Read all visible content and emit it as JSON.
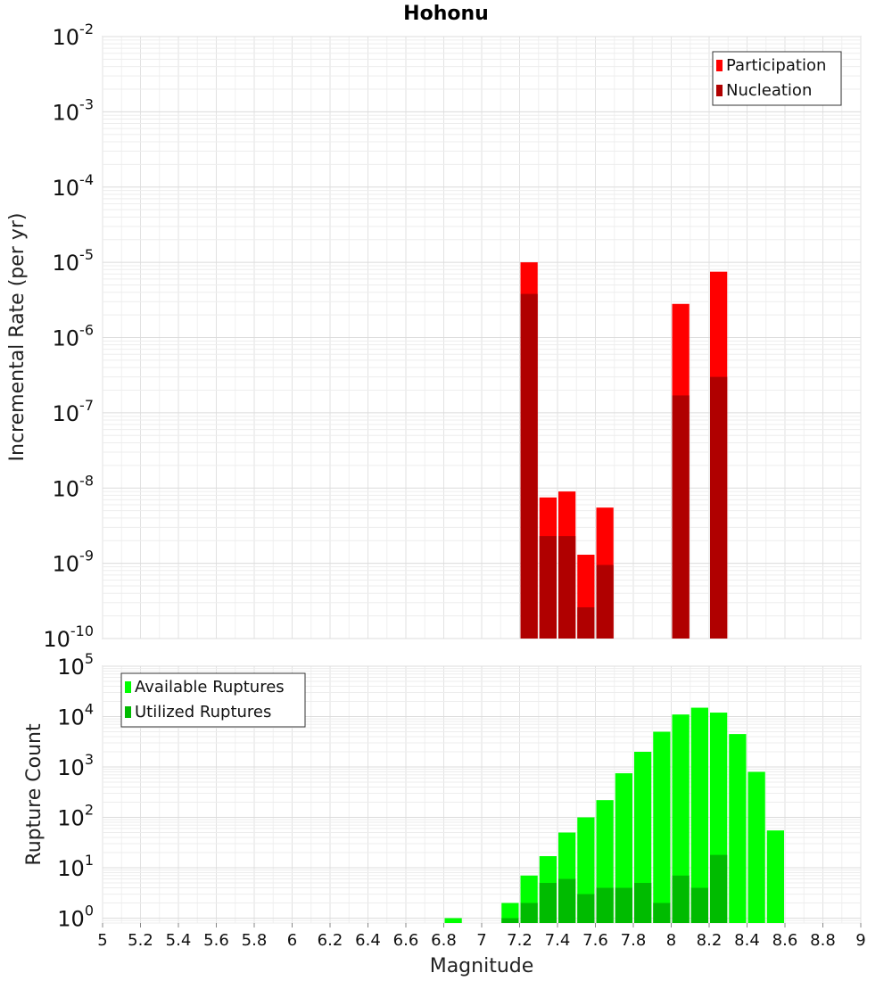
{
  "title": "Hohonu",
  "x_axis": {
    "label": "Magnitude",
    "range": [
      5,
      9
    ],
    "ticks": [
      "5",
      "5.2",
      "5.4",
      "5.6",
      "5.8",
      "6",
      "6.2",
      "6.4",
      "6.6",
      "6.8",
      "7",
      "7.2",
      "7.4",
      "7.6",
      "7.8",
      "8",
      "8.2",
      "8.4",
      "8.6",
      "8.8",
      "9"
    ]
  },
  "chart_data": [
    {
      "type": "bar",
      "title": "Hohonu",
      "ylabel": "Incremental Rate (per yr)",
      "xlabel": "",
      "yscale": "log",
      "ylim": [
        1e-10,
        0.01
      ],
      "y_tick_exponents": [
        -10,
        -9,
        -8,
        -7,
        -6,
        -5,
        -4,
        -3,
        -2
      ],
      "grid": true,
      "legend_position": "top-right",
      "bar_width": 0.1,
      "series": [
        {
          "name": "Participation",
          "color": "#ff0000",
          "x": [
            7.25,
            7.35,
            7.45,
            7.55,
            7.65,
            8.05,
            8.25
          ],
          "values": [
            1e-05,
            7.5e-09,
            9e-09,
            1.3e-09,
            5.5e-09,
            2.8e-06,
            7.5e-06
          ]
        },
        {
          "name": "Nucleation",
          "color": "#b00000",
          "x": [
            7.25,
            7.35,
            7.45,
            7.55,
            7.65,
            8.05,
            8.25
          ],
          "values": [
            3.8e-06,
            2.3e-09,
            2.3e-09,
            2.6e-10,
            9.5e-10,
            1.7e-07,
            3e-07
          ]
        }
      ]
    },
    {
      "type": "bar",
      "title": "",
      "ylabel": "Rupture Count",
      "xlabel": "Magnitude",
      "yscale": "log",
      "ylim": [
        0.8,
        100000
      ],
      "y_tick_exponents": [
        0,
        1,
        2,
        3,
        4,
        5
      ],
      "grid": true,
      "legend_position": "top-left",
      "bar_width": 0.1,
      "series": [
        {
          "name": "Available Ruptures",
          "color": "#00ff00",
          "x": [
            6.85,
            7.15,
            7.25,
            7.35,
            7.45,
            7.55,
            7.65,
            7.75,
            7.85,
            7.95,
            8.05,
            8.15,
            8.25,
            8.35,
            8.45,
            8.55
          ],
          "values": [
            1,
            2,
            7,
            17,
            50,
            100,
            220,
            750,
            2000,
            5000,
            11000,
            15000,
            12000,
            4500,
            800,
            55
          ]
        },
        {
          "name": "Utilized Ruptures",
          "color": "#00bb00",
          "x": [
            7.15,
            7.25,
            7.35,
            7.45,
            7.55,
            7.65,
            7.75,
            7.85,
            7.95,
            8.05,
            8.15,
            8.25
          ],
          "values": [
            1,
            2,
            5,
            6,
            3,
            4,
            4,
            5,
            2,
            7,
            4,
            18
          ]
        }
      ]
    }
  ]
}
